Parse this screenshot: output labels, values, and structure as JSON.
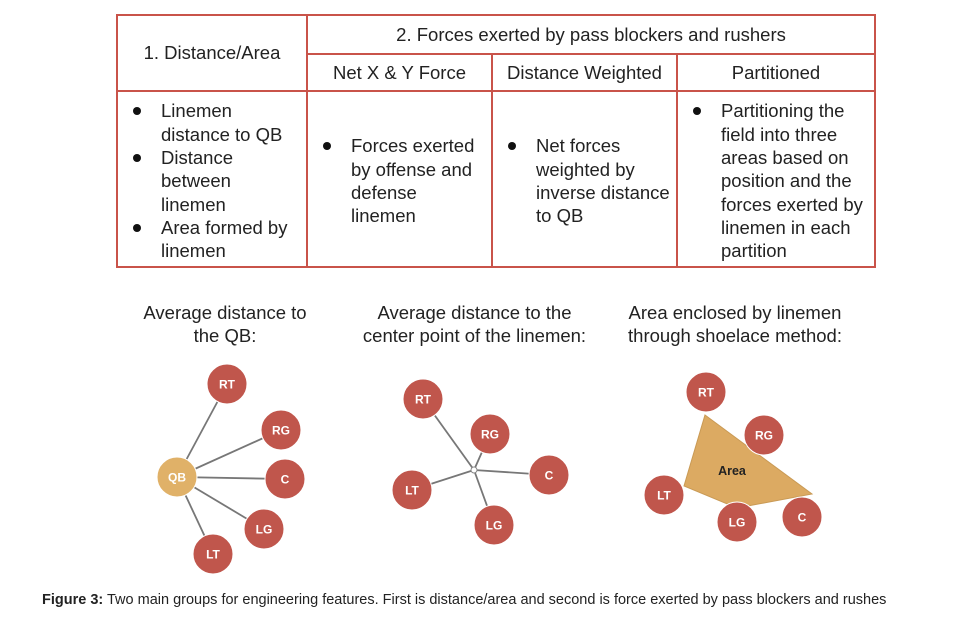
{
  "table": {
    "col1_header": "1.   Distance/Area",
    "group_header": "2. Forces exerted by pass blockers and rushers",
    "subheaders": [
      "Net X & Y Force",
      "Distance Weighted",
      "Partitioned"
    ],
    "col1_bullets": [
      "Linemen distance to QB",
      "Distance between linemen",
      "Area formed by linemen"
    ],
    "col2_bullets": [
      "Forces exerted by offense and defense linemen"
    ],
    "col3_bullets": [
      "Net forces weighted by inverse distance to QB"
    ],
    "col4_bullets": [
      "Partitioning the field into three areas based on position and the forces exerted by linemen in each partition"
    ]
  },
  "diagrams": {
    "titles": [
      "Average distance to the QB:",
      "Average distance to the center point of the linemen:",
      "Area enclosed by linemen through shoelace method:"
    ],
    "colors": {
      "player": "#c0564c",
      "qb": "#e0b168",
      "area": "#dcaa62",
      "line": "#777777",
      "player_text": "#ffffff"
    },
    "d1": {
      "qb": "QB",
      "players": [
        "RT",
        "RG",
        "C",
        "LG",
        "LT"
      ]
    },
    "d2": {
      "players": [
        "RT",
        "RG",
        "C",
        "LT",
        "LG"
      ]
    },
    "d3": {
      "players": [
        "RT",
        "RG",
        "LT",
        "LG",
        "C"
      ],
      "area_label": "Area"
    }
  },
  "caption": {
    "label": "Figure 3:",
    "text": " Two main groups for engineering features. First is distance/area and second is force exerted by pass blockers and rushes"
  }
}
